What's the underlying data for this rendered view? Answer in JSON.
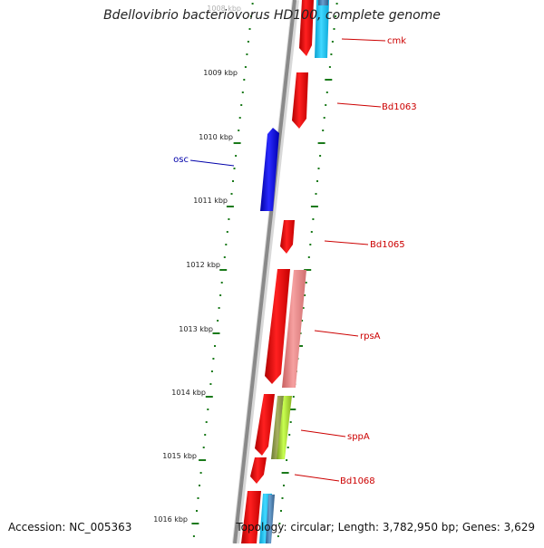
{
  "title": "Bdellovibrio bacteriovorus HD100, complete genome",
  "accession": "Accession: NC_005363",
  "topology": "Topology: circular; Length: 3,782,950 bp; Genes: 3,629",
  "colors": {
    "forward_gene": "#ff1a1a",
    "reverse_gene": "#2222ee",
    "pale_red": "#f08080",
    "cyan": "#19c8f0",
    "steel_blue": "#4682b4",
    "lime": "#b8f038",
    "tick_green": "#1a7a1a",
    "label_red": "#cc0000",
    "label_blue": "#0000aa",
    "backbone": "#888888"
  },
  "kbp_ticks": [
    "1008 kbp",
    "1009 kbp",
    "1010 kbp",
    "1011 kbp",
    "1012 kbp",
    "1013 kbp",
    "1014 kbp",
    "1015 kbp",
    "1016 kbp"
  ],
  "gene_labels": [
    {
      "id": "cmk",
      "text": "cmk",
      "strand": "forward"
    },
    {
      "id": "bd1063",
      "text": "Bd1063",
      "strand": "forward"
    },
    {
      "id": "osc",
      "text": "osc",
      "strand": "reverse"
    },
    {
      "id": "bd1065",
      "text": "Bd1065",
      "strand": "forward"
    },
    {
      "id": "rpsa",
      "text": "rpsA",
      "strand": "forward"
    },
    {
      "id": "sppa",
      "text": "sppA",
      "strand": "forward"
    },
    {
      "id": "bd1068",
      "text": "Bd1068",
      "strand": "forward"
    }
  ]
}
